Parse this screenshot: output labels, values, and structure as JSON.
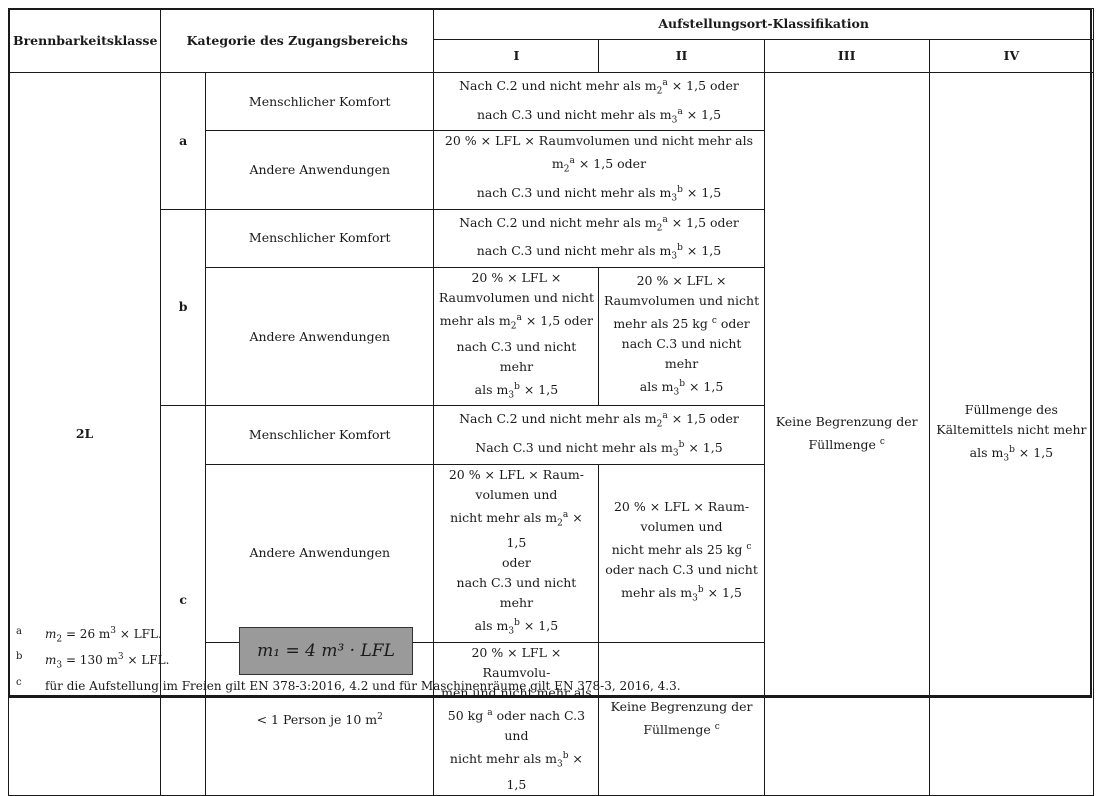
{
  "header": {
    "col1": "Brennbarkeitsklasse",
    "col2": "Kategorie des Zugangsbereichs",
    "group": "Aufstellungsort-Klassifikation",
    "I": "I",
    "II": "II",
    "III": "III",
    "IV": "IV"
  },
  "class": "2L",
  "cats": {
    "a": "a",
    "b": "b",
    "c": "c"
  },
  "rows": {
    "a1_label": "Menschlicher Komfort",
    "a1_l1": "Nach C.2 und nicht mehr als m",
    "a1_l2": "nach C.3 und nicht mehr als m",
    "a2_label": "Andere Anwendungen",
    "a2_l1": "20 % × LFL × Raumvolumen und nicht mehr als",
    "a2_l2": "m",
    "a2_l3": "nach C.3 und nicht mehr als m",
    "b1_label": "Menschlicher Komfort",
    "b1_l1": "Nach C.2 und nicht mehr als m",
    "b1_l2": "nach C.3 und nicht mehr als m",
    "b2_label": "Andere Anwendungen",
    "b2_I": [
      "20 % × LFL ×",
      "Raumvolumen und nicht",
      "mehr als m",
      "nach C.3 und nicht mehr",
      "als m"
    ],
    "b2_II": [
      "20 % × LFL ×",
      "Raumvolumen und nicht",
      "mehr als 25 kg",
      "nach C.3 und nicht mehr",
      "als m"
    ],
    "c1_label": "Menschlicher Komfort",
    "c1_l1": "Nach C.2 und nicht mehr als m",
    "c1_l2": "Nach C.3 und nicht mehr als m",
    "c2_label": "Andere Anwendungen",
    "c2_I": [
      "20 % × LFL × Raum-",
      "volumen und",
      "nicht mehr als m",
      "oder",
      "nach C.3 und nicht mehr",
      "als m"
    ],
    "c2_II": [
      "20 % × LFL × Raum-",
      "volumen und",
      "nicht mehr als 25 kg",
      "oder nach C.3 und nicht",
      "mehr als m"
    ],
    "c3_label": "< 1 Person je 10 m",
    "c3_I": [
      "20 % × LFL × Raumvolu-",
      "men und nicht mehr als",
      "50 kg",
      "nicht mehr als m"
    ],
    "c3_II": [
      "Keine Begrenzung der",
      "Füllmenge"
    ]
  },
  "col3": [
    "Keine Begrenzung der",
    "Füllmenge"
  ],
  "col4": [
    "Füllmenge des",
    "Kältemittels nicht mehr",
    "als m"
  ],
  "tokens": {
    "sub2": "2",
    "sub3": "3",
    "supa": "a",
    "supb": "b",
    "supc": "c",
    "sup2": "2",
    "x15": " × 1,5",
    "x15oder": " × 1,5 oder",
    "oder": " oder",
    "oderC3": " oder nach C.3 und"
  },
  "footnotes": {
    "a_mark": "a",
    "a_text_pre": "m",
    "a_text_post": " = 26 m",
    "a_text_end": " × LFL.",
    "b_mark": "b",
    "b_text_pre": "m",
    "b_text_post": " = 130 m",
    "b_text_end": " × LFL.",
    "c_mark": "c",
    "c_text": "für die Aufstellung im Freien gilt EN 378-3:2016, 4.2 und für Maschinenräume gilt EN 378-3, 2016, 4.3.",
    "formula": "m₁ = 4 m³ · LFL"
  }
}
